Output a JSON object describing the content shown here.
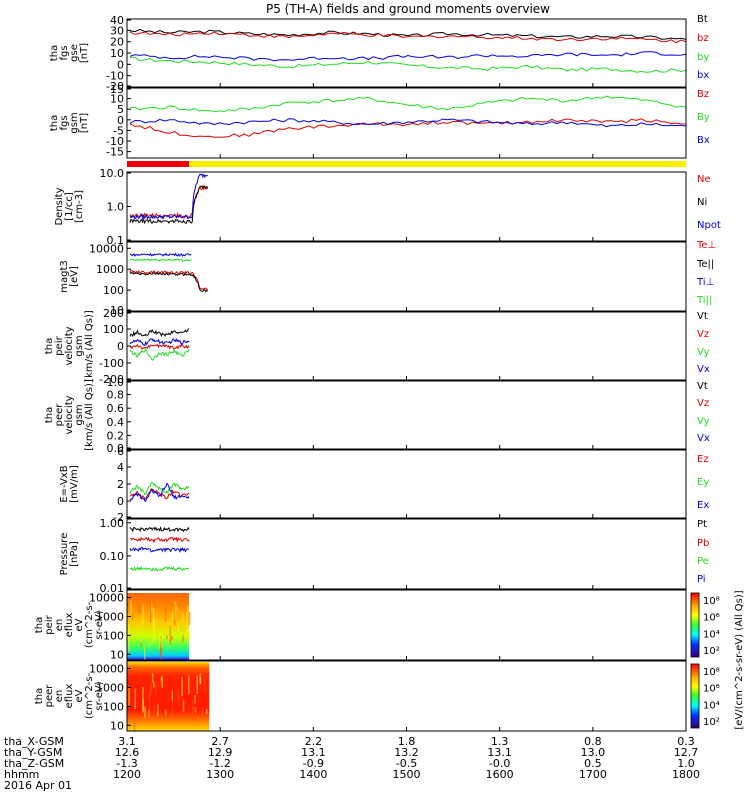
{
  "title": "P5 (TH-A) fields and ground moments overview",
  "colors": {
    "black": "#000000",
    "red": "#e00000",
    "green": "#22dd22",
    "blue": "#0000e0",
    "yellow": "#ffee00",
    "bar_red": "#ee0000"
  },
  "chart_data": {
    "type": "line",
    "x_axis": {
      "range_hhmm": [
        "1200",
        "1800"
      ],
      "ticks": [
        "1200",
        "1300",
        "1400",
        "1500",
        "1600",
        "1700",
        "1800"
      ],
      "date_label": "2016 Apr 01",
      "rows": [
        {
          "label": "tha_X-GSM",
          "values": [
            "3.1",
            "2.7",
            "2.2",
            "1.8",
            "1.3",
            "0.8",
            "0.3"
          ]
        },
        {
          "label": "tha_Y-GSM",
          "values": [
            "12.6",
            "12.9",
            "13.1",
            "13.2",
            "13.1",
            "13.0",
            "12.7"
          ]
        },
        {
          "label": "tha_Z-GSM",
          "values": [
            "-1.3",
            "-1.2",
            "-0.9",
            "-0.5",
            "-0.0",
            "0.5",
            "1.0"
          ]
        },
        {
          "label": "hhmm",
          "values": [
            "1200",
            "1300",
            "1400",
            "1500",
            "1600",
            "1700",
            "1800"
          ]
        }
      ]
    },
    "panels": [
      {
        "id": "fgs_gse",
        "ylabel": [
          "tha",
          "fgs",
          "gse",
          "[nT]"
        ],
        "yticks": [
          "40",
          "30",
          "20",
          "10",
          "0",
          "-10",
          "-20"
        ],
        "ylim": [
          -20,
          40
        ],
        "scale": "linear",
        "series": [
          {
            "name": "Bt",
            "color": "black",
            "values": [
              30,
              28,
              29,
              27,
              26,
              28,
              27,
              25,
              27,
              26,
              25,
              24,
              25,
              24,
              22
            ]
          },
          {
            "name": "bz",
            "color": "red",
            "values": [
              28,
              26,
              28,
              26,
              24,
              27,
              26,
              24,
              25,
              24,
              23,
              22,
              23,
              22,
              20
            ]
          },
          {
            "name": "by",
            "color": "green",
            "values": [
              5,
              3,
              2,
              0,
              -2,
              0,
              2,
              -1,
              -3,
              -4,
              -2,
              -5,
              -4,
              -6,
              -5
            ]
          },
          {
            "name": "bx",
            "color": "blue",
            "values": [
              8,
              6,
              7,
              5,
              4,
              6,
              5,
              7,
              6,
              8,
              7,
              9,
              8,
              10,
              9
            ]
          }
        ]
      },
      {
        "id": "fgs_gsm",
        "ylabel": [
          "tha",
          "fgs",
          "gsm",
          "[nT]"
        ],
        "yticks": [
          "15",
          "10",
          "5",
          "0",
          "-5",
          "-10",
          "-15"
        ],
        "ylim": [
          -18,
          15
        ],
        "scale": "linear",
        "series": [
          {
            "name": "Bz",
            "color": "red",
            "values": [
              -2,
              -6,
              -8,
              -7,
              -4,
              -3,
              -2,
              -2,
              -1,
              -2,
              -1,
              0,
              -1,
              0,
              -2
            ]
          },
          {
            "name": "By",
            "color": "green",
            "values": [
              5,
              6,
              4,
              5,
              8,
              9,
              10,
              7,
              5,
              8,
              10,
              9,
              11,
              9,
              6
            ]
          },
          {
            "name": "Bx",
            "color": "blue",
            "values": [
              -1,
              0,
              -2,
              -1,
              0,
              -1,
              -2,
              -1,
              0,
              -1,
              -2,
              -1,
              -3,
              -2,
              -3
            ]
          }
        ],
        "status_bar": {
          "red_until_hhmm": "1240",
          "yellow_from_hhmm": "1240"
        }
      },
      {
        "id": "density",
        "ylabel": [
          "Density",
          "[1/cc]",
          "[cm-3]"
        ],
        "yticks": [
          "10.0",
          "1.0",
          "0.1"
        ],
        "ylim": [
          0.1,
          10
        ],
        "scale": "log",
        "data_end_hhmm": "1252",
        "series": [
          {
            "name": "Ne",
            "color": "red",
            "values": [
              0.55,
              0.55,
              0.56,
              0.55,
              0.56,
              0.55,
              0.56,
              0.55,
              0.56,
              3.5,
              3.5
            ]
          },
          {
            "name": "Ni",
            "color": "black",
            "values": [
              0.38,
              0.37,
              0.38,
              0.37,
              0.38,
              0.37,
              0.38,
              0.37,
              0.38,
              3.5,
              3.5
            ]
          },
          {
            "name": "Npot",
            "color": "blue",
            "values": [
              0.5,
              0.5,
              0.51,
              0.5,
              0.51,
              0.5,
              0.51,
              0.5,
              0.51,
              8,
              8
            ]
          }
        ]
      },
      {
        "id": "temperature",
        "ylabel": [
          "magt3",
          "[eV]"
        ],
        "yticks": [
          "10000",
          "1000",
          "100",
          "10"
        ],
        "ylim": [
          10,
          20000
        ],
        "scale": "log",
        "data_end_hhmm": "1252",
        "series": [
          {
            "name": "Te⊥",
            "color": "red",
            "values": [
              800,
              750,
              700,
              760,
              720,
              700,
              680,
              700,
              650,
              120,
              110
            ]
          },
          {
            "name": "Te||",
            "color": "black",
            "values": [
              650,
              600,
              580,
              620,
              600,
              570,
              560,
              580,
              540,
              100,
              90
            ]
          },
          {
            "name": "Ti⊥",
            "color": "blue",
            "values": [
              5000,
              4800,
              5200,
              5000,
              4900,
              5100,
              5000,
              4800,
              5000,
              null,
              null
            ]
          },
          {
            "name": "Ti||",
            "color": "green",
            "values": [
              2800,
              2700,
              2900,
              2800,
              2750,
              2850,
              2800,
              2700,
              2800,
              null,
              null
            ]
          }
        ]
      },
      {
        "id": "peir_velocity",
        "ylabel": [
          "tha",
          "peir",
          "velocity",
          "gsm",
          "[km/s (All Qs)]"
        ],
        "yticks": [
          "200",
          "100",
          "0",
          "-100",
          "-200"
        ],
        "ylim": [
          -200,
          200
        ],
        "scale": "linear",
        "data_end_hhmm": "1240",
        "series": [
          {
            "name": "Vt",
            "color": "black",
            "values": [
              60,
              80,
              55,
              90,
              70,
              65,
              85,
              75,
              100
            ]
          },
          {
            "name": "Vz",
            "color": "red",
            "values": [
              -10,
              5,
              -20,
              10,
              -5,
              0,
              -15,
              5,
              -10
            ]
          },
          {
            "name": "Vy",
            "color": "green",
            "values": [
              -30,
              -60,
              -20,
              -80,
              -40,
              -50,
              -30,
              -60,
              -20
            ]
          },
          {
            "name": "Vx",
            "color": "blue",
            "values": [
              20,
              30,
              10,
              40,
              25,
              15,
              35,
              20,
              30
            ]
          }
        ]
      },
      {
        "id": "peer_velocity",
        "ylabel": [
          "tha",
          "peer",
          "velocity",
          "gsm",
          "[km/s (All Qs)]"
        ],
        "yticks": [
          "1.0",
          "0.8",
          "0.6",
          "0.4",
          "0.2",
          "0.0"
        ],
        "ylim": [
          0,
          1
        ],
        "scale": "linear",
        "series": [
          {
            "name": "Vt",
            "color": "black",
            "values": []
          },
          {
            "name": "Vz",
            "color": "red",
            "values": []
          },
          {
            "name": "Vy",
            "color": "green",
            "values": []
          },
          {
            "name": "Vx",
            "color": "blue",
            "values": []
          }
        ]
      },
      {
        "id": "efield",
        "ylabel": [
          "E=-VxB",
          "[mV/m]"
        ],
        "yticks": [
          "6",
          "4",
          "2",
          "0",
          "-2"
        ],
        "ylim": [
          -2,
          6
        ],
        "scale": "linear",
        "data_end_hhmm": "1240",
        "series": [
          {
            "name": "Ez",
            "color": "red",
            "values": [
              0.5,
              1.0,
              0.3,
              1.5,
              0.8,
              0.4,
              1.2,
              0.6,
              0.9
            ]
          },
          {
            "name": "Ey",
            "color": "green",
            "values": [
              1.0,
              1.8,
              0.8,
              2.2,
              1.5,
              1.0,
              2.0,
              1.4,
              1.6
            ]
          },
          {
            "name": "Ex",
            "color": "blue",
            "values": [
              0.2,
              0.8,
              0.0,
              1.2,
              0.5,
              2.0,
              0.4,
              0.6,
              0.3
            ]
          }
        ]
      },
      {
        "id": "pressure",
        "ylabel": [
          "Pressure",
          "[nPa]"
        ],
        "yticks": [
          "1.00",
          "0.10",
          "0.01"
        ],
        "ylim": [
          0.01,
          1.3
        ],
        "scale": "log",
        "data_end_hhmm": "1240",
        "series": [
          {
            "name": "Pt",
            "color": "black",
            "values": [
              0.65,
              0.62,
              0.66,
              0.63,
              0.64,
              0.62,
              0.65,
              0.63,
              0.64
            ]
          },
          {
            "name": "Pb",
            "color": "red",
            "values": [
              0.35,
              0.3,
              0.34,
              0.28,
              0.32,
              0.3,
              0.33,
              0.29,
              0.31
            ]
          },
          {
            "name": "Pe",
            "color": "green",
            "values": [
              0.042,
              0.04,
              0.043,
              0.041,
              0.04,
              0.042,
              0.041,
              0.04,
              0.042
            ]
          },
          {
            "name": "Pi",
            "color": "blue",
            "values": [
              0.16,
              0.15,
              0.17,
              0.14,
              0.16,
              0.15,
              0.16,
              0.15,
              0.16
            ]
          }
        ]
      },
      {
        "id": "peir_eflux",
        "type": "heatmap",
        "ylabel": [
          "tha",
          "peir",
          "en",
          "eflux",
          "eV",
          "(cm^2-s-",
          "sr-eV)"
        ],
        "yticks": [
          "10000",
          "1000",
          "100",
          "10"
        ],
        "ylim": [
          5,
          25000
        ],
        "scale": "log",
        "data_end_hhmm": "1240",
        "colorbar": {
          "ticks": [
            "10⁸",
            "10⁶",
            "10⁴",
            "10²"
          ],
          "label": "[eV/(cm^2-s-sr-eV) (All Qs)]"
        }
      },
      {
        "id": "peer_eflux",
        "type": "heatmap",
        "ylabel": [
          "tha",
          "peer",
          "en",
          "eflux",
          "eV",
          "(cm^2-s-",
          "sr-eV)"
        ],
        "yticks": [
          "10000",
          "1000",
          "100",
          "10"
        ],
        "ylim": [
          5,
          25000
        ],
        "scale": "log",
        "data_end_hhmm": "1253",
        "colorbar": {
          "ticks": [
            "10⁸",
            "10⁶",
            "10⁴",
            "10²"
          ],
          "label": "[eV/(cm^2-s-sr-eV) (All Qs)]"
        }
      }
    ]
  }
}
